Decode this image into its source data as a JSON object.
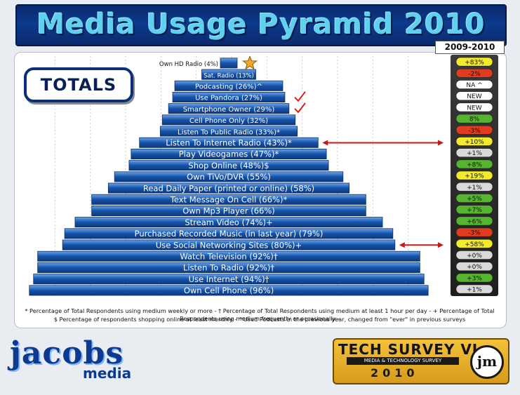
{
  "header": {
    "title": "Media Usage Pyramid 2010",
    "years_label": "2009-2010"
  },
  "totals_label": "TOTALS",
  "colors": {
    "bar": "#1552a8",
    "bar_light": "#4f8ee0",
    "title": "#5fd0ee",
    "pos_green": "#56b52e",
    "neg_red": "#e23b1e",
    "high_yellow": "#f2ea2a",
    "neutral": "#ffffff",
    "neutral_grey": "#d9d9d9"
  },
  "chart_data": {
    "type": "bar",
    "title": "Media Usage Pyramid 2010",
    "layout": "pyramid",
    "categories": [
      "Own HD Radio (4%)",
      "Sat. Radio (13%)",
      "Podcasting (26%)^",
      "Use Pandora (27%)",
      "Smartphone Owner (29%)",
      "Cell Phone Only (32%)",
      "Listen To Public Radio (33%)*",
      "Listen To Internet Radio (43%)*",
      "Play Videogames (47%)*",
      "Shop Online (48%)$",
      "Own TiVo/DVR (55%)",
      "Read Daily Paper (printed or online) (58%)",
      "Text Message On Cell (66%)*",
      "Own Mp3 Player (66%)",
      "Stream Video (74%)+",
      "Purchased Recorded Music (in last year) (79%)",
      "Use Social Networking Sites (80%)+",
      "Watch Television (92%)†",
      "Listen To Radio (92%)†",
      "Use Internet (94%)†",
      "Own Cell Phone (96%)"
    ],
    "values": [
      4,
      13,
      26,
      27,
      29,
      32,
      33,
      43,
      47,
      48,
      55,
      58,
      66,
      66,
      74,
      79,
      80,
      92,
      92,
      94,
      96
    ],
    "unit": "%",
    "changes": [
      {
        "label": "+83%",
        "color": "high_yellow"
      },
      {
        "label": "-2%",
        "color": "neg_red"
      },
      {
        "label": "NA ^",
        "color": "neutral"
      },
      {
        "label": "NEW",
        "color": "neutral"
      },
      {
        "label": "NEW",
        "color": "neutral"
      },
      {
        "label": "8%",
        "color": "pos_green"
      },
      {
        "label": "-3%",
        "color": "neg_red"
      },
      {
        "label": "+10%",
        "color": "high_yellow"
      },
      {
        "label": "+1%",
        "color": "neutral_grey"
      },
      {
        "label": "+8%",
        "color": "pos_green"
      },
      {
        "label": "+19%",
        "color": "high_yellow"
      },
      {
        "label": "+1%",
        "color": "neutral_grey"
      },
      {
        "label": "+5%",
        "color": "pos_green"
      },
      {
        "label": "+7%",
        "color": "pos_green"
      },
      {
        "label": "+6%",
        "color": "pos_green"
      },
      {
        "label": "-3%",
        "color": "neg_red"
      },
      {
        "label": "+58%",
        "color": "high_yellow"
      },
      {
        "label": "+0%",
        "color": "neutral_grey"
      },
      {
        "label": "+0%",
        "color": "neutral_grey"
      },
      {
        "label": "+3%",
        "color": "pos_green"
      },
      {
        "label": "+1%",
        "color": "neutral_grey"
      }
    ],
    "markers": {
      "star_on": "Own HD Radio (4%)",
      "checkmarks_on": [
        "Use Pandora (27%)",
        "Smartphone Owner (29%)"
      ],
      "arrows_on": [
        "Listen To Internet Radio (43%)*",
        "Use Social Networking Sites (80%)+"
      ]
    },
    "grid": true
  },
  "footnotes": {
    "line1": "* Percentage of Total Respondents using medium weekly or more - † Percentage of Total Respondents using medium at least 1 hour per day - + Percentage of Total Respondents using medium frequently or occasionally -",
    "line2": "$ Percentage of respondents shopping online at least monthly - ^Used Podcasts in the previous year, changed from \"ever\" in previous surveys"
  },
  "logo_left": {
    "name": "jacobs",
    "sub": "media"
  },
  "logo_right": {
    "title": "TECH SURVEY VI",
    "subtitle": "MEDIA & TECHNOLOGY SURVEY",
    "year": "2010",
    "mark": "jm"
  }
}
